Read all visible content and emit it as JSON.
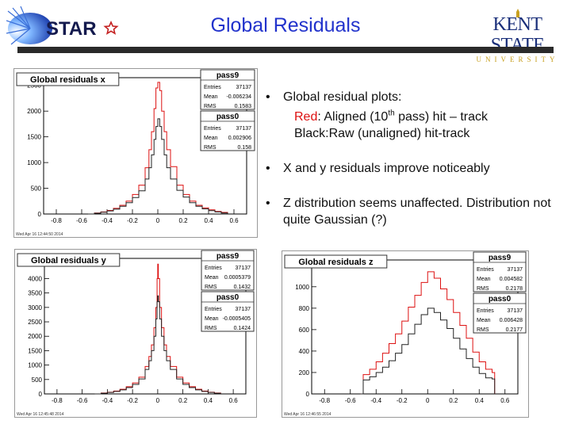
{
  "slide": {
    "title": "Global Residuals",
    "logo_left_text": "STAR",
    "logo_right_line1": "KENT STATE",
    "logo_right_line2": "UNIVERSITY"
  },
  "bullets": {
    "b1_title": "Global residual plots:",
    "b1_red_word": "Red",
    "b1_line2a": ": Aligned (10",
    "b1_line2_sup": "th",
    "b1_line2b": " pass) hit – track",
    "b1_line3": "Black:Raw (unaligned) hit-track",
    "b2": "X and y residuals improve noticeably",
    "b3": "Z distribution seems unaffected. Distribution not quite Gaussian (?)"
  },
  "colors": {
    "aligned": "#dd1111",
    "raw": "#222222",
    "title_blue": "#2233cc"
  },
  "chart_data": [
    {
      "type": "histogram",
      "title": "Global residuals x",
      "xlim": [
        -0.9,
        0.7
      ],
      "ylim": [
        0,
        2650
      ],
      "xticks": [
        -0.8,
        -0.6,
        -0.4,
        -0.2,
        0,
        0.2,
        0.4,
        0.6
      ],
      "yticks": [
        0,
        500,
        1000,
        1500,
        2000,
        2500
      ],
      "footer": "Wed Apr 16 12:44:50 2014",
      "stats": [
        {
          "name": "pass9",
          "entries": "37137",
          "mean": "-0.006234",
          "rms": "0.1583"
        },
        {
          "name": "pass0",
          "entries": "37137",
          "mean": "0.002906",
          "rms": "0.158"
        }
      ],
      "series": [
        {
          "name": "pass9",
          "color": "red",
          "x": [
            -0.55,
            -0.5,
            -0.45,
            -0.4,
            -0.35,
            -0.3,
            -0.25,
            -0.2,
            -0.15,
            -0.1,
            -0.07,
            -0.05,
            -0.03,
            -0.015,
            0,
            0.015,
            0.03,
            0.05,
            0.07,
            0.1,
            0.15,
            0.2,
            0.25,
            0.3,
            0.35,
            0.4,
            0.45,
            0.5,
            0.55
          ],
          "y": [
            0,
            20,
            40,
            70,
            110,
            170,
            250,
            380,
            560,
            900,
            1250,
            1600,
            2050,
            2450,
            2560,
            2400,
            2000,
            1600,
            1250,
            920,
            560,
            380,
            250,
            170,
            120,
            80,
            50,
            30,
            0
          ]
        },
        {
          "name": "pass0",
          "color": "black",
          "x": [
            -0.55,
            -0.5,
            -0.45,
            -0.4,
            -0.35,
            -0.3,
            -0.25,
            -0.2,
            -0.15,
            -0.1,
            -0.07,
            -0.05,
            -0.03,
            -0.015,
            0,
            0.015,
            0.03,
            0.05,
            0.07,
            0.1,
            0.15,
            0.2,
            0.25,
            0.3,
            0.35,
            0.4,
            0.45,
            0.5,
            0.55
          ],
          "y": [
            0,
            15,
            35,
            60,
            95,
            150,
            220,
            320,
            450,
            680,
            900,
            1150,
            1450,
            1700,
            1850,
            1700,
            1450,
            1150,
            900,
            680,
            460,
            330,
            220,
            150,
            100,
            65,
            40,
            20,
            0
          ]
        }
      ]
    },
    {
      "type": "histogram",
      "title": "Global residuals y",
      "xlim": [
        -0.9,
        0.7
      ],
      "ylim": [
        0,
        4700
      ],
      "xticks": [
        -0.8,
        -0.6,
        -0.4,
        -0.2,
        0,
        0.2,
        0.4,
        0.6
      ],
      "yticks": [
        0,
        500,
        1000,
        1500,
        2000,
        2500,
        3000,
        3500,
        4000,
        4500
      ],
      "footer": "Wed Apr 16 12:45:48 2014",
      "stats": [
        {
          "name": "pass9",
          "entries": "37137",
          "mean": "0.0005379",
          "rms": "0.1432"
        },
        {
          "name": "pass0",
          "entries": "37137",
          "mean": "-0.0005405",
          "rms": "0.1424"
        }
      ],
      "series": [
        {
          "name": "pass9",
          "color": "red",
          "x": [
            -0.5,
            -0.45,
            -0.4,
            -0.35,
            -0.3,
            -0.25,
            -0.2,
            -0.15,
            -0.1,
            -0.07,
            -0.05,
            -0.03,
            -0.015,
            -0.005,
            0,
            0.005,
            0.015,
            0.03,
            0.05,
            0.07,
            0.1,
            0.15,
            0.2,
            0.25,
            0.3,
            0.35,
            0.4,
            0.45,
            0.5
          ],
          "y": [
            0,
            30,
            60,
            100,
            160,
            250,
            380,
            580,
            950,
            1300,
            1700,
            2300,
            3000,
            4000,
            4500,
            4000,
            3000,
            2300,
            1700,
            1300,
            950,
            580,
            380,
            250,
            160,
            100,
            60,
            30,
            0
          ]
        },
        {
          "name": "pass0",
          "color": "black",
          "x": [
            -0.5,
            -0.45,
            -0.4,
            -0.35,
            -0.3,
            -0.25,
            -0.2,
            -0.15,
            -0.1,
            -0.07,
            -0.05,
            -0.03,
            -0.015,
            -0.005,
            0,
            0.005,
            0.015,
            0.03,
            0.05,
            0.07,
            0.1,
            0.15,
            0.2,
            0.25,
            0.3,
            0.35,
            0.4,
            0.45,
            0.5
          ],
          "y": [
            0,
            25,
            50,
            85,
            140,
            220,
            330,
            520,
            850,
            1150,
            1500,
            2000,
            2600,
            3200,
            3400,
            3200,
            2600,
            2000,
            1500,
            1150,
            850,
            520,
            330,
            220,
            140,
            85,
            50,
            25,
            0
          ]
        }
      ]
    },
    {
      "type": "histogram",
      "title": "Global residuals z",
      "xlim": [
        -0.9,
        0.7
      ],
      "ylim": [
        0,
        1250
      ],
      "xticks": [
        -0.8,
        -0.6,
        -0.4,
        -0.2,
        0,
        0.2,
        0.4,
        0.6
      ],
      "yticks": [
        0,
        200,
        400,
        600,
        800,
        1000,
        1200
      ],
      "footer": "Wed Apr 16 12:46:55 2014",
      "stats": [
        {
          "name": "pass9",
          "entries": "37137",
          "mean": "0.004582",
          "rms": "0.2178"
        },
        {
          "name": "pass0",
          "entries": "37137",
          "mean": "0.006428",
          "rms": "0.2177"
        }
      ],
      "series": [
        {
          "name": "pass9",
          "color": "red",
          "x": [
            -0.52,
            -0.5,
            -0.45,
            -0.4,
            -0.35,
            -0.3,
            -0.25,
            -0.2,
            -0.15,
            -0.1,
            -0.05,
            0,
            0.05,
            0.1,
            0.15,
            0.2,
            0.25,
            0.3,
            0.35,
            0.4,
            0.45,
            0.5,
            0.52
          ],
          "y": [
            0,
            180,
            230,
            300,
            380,
            470,
            560,
            680,
            810,
            920,
            1040,
            1140,
            1080,
            980,
            880,
            760,
            640,
            520,
            390,
            300,
            230,
            200,
            0
          ]
        },
        {
          "name": "pass0",
          "color": "black",
          "x": [
            -0.52,
            -0.5,
            -0.45,
            -0.4,
            -0.35,
            -0.3,
            -0.25,
            -0.2,
            -0.15,
            -0.1,
            -0.05,
            0,
            0.05,
            0.1,
            0.15,
            0.2,
            0.25,
            0.3,
            0.35,
            0.4,
            0.45,
            0.5,
            0.52
          ],
          "y": [
            0,
            130,
            160,
            200,
            250,
            310,
            380,
            460,
            560,
            650,
            740,
            800,
            760,
            690,
            610,
            520,
            420,
            330,
            250,
            190,
            150,
            140,
            0
          ]
        }
      ]
    }
  ]
}
